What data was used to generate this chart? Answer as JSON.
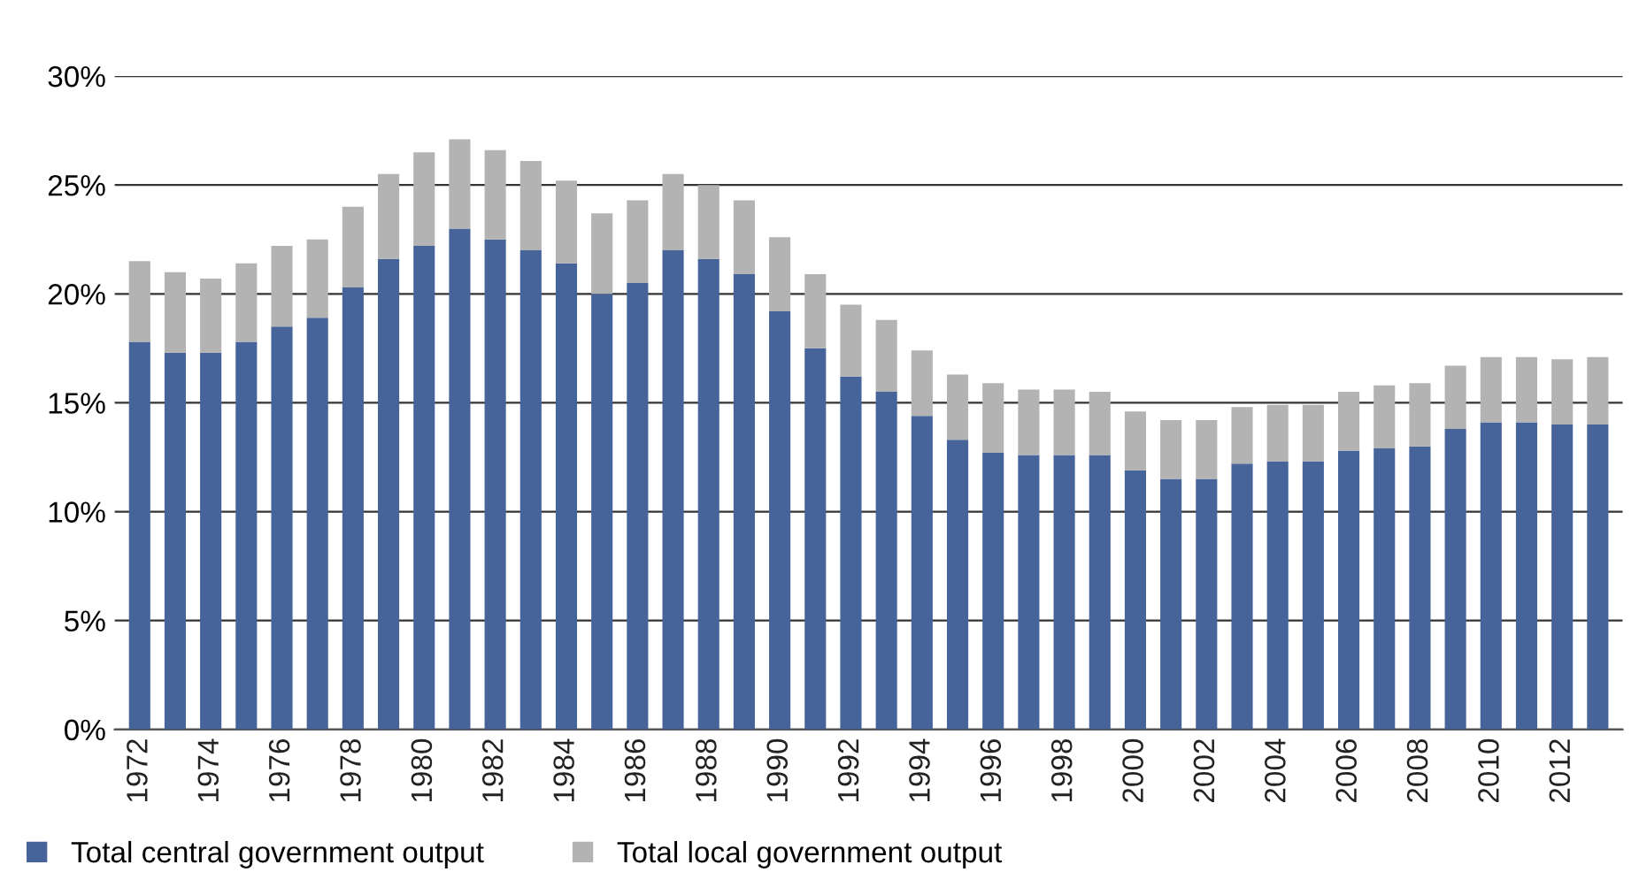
{
  "chart_data": {
    "type": "bar",
    "stacked": true,
    "categories": [
      "1972",
      null,
      "1974",
      null,
      "1976",
      null,
      "1978",
      null,
      "1980",
      null,
      "1982",
      null,
      "1984",
      null,
      "1986",
      null,
      "1988",
      null,
      "1990",
      null,
      "1992",
      null,
      "1994",
      null,
      "1996",
      null,
      "1998",
      null,
      "2000",
      null,
      "2002",
      null,
      "2004",
      null,
      "2006",
      null,
      "2008",
      null,
      "2010",
      null,
      "2012",
      null
    ],
    "series": [
      {
        "name": "Total central government output",
        "color": "#46639a",
        "values": [
          17.8,
          17.3,
          17.3,
          17.8,
          18.5,
          18.9,
          20.3,
          21.6,
          22.2,
          23.0,
          22.5,
          22.0,
          21.4,
          20.0,
          20.5,
          22.0,
          21.6,
          20.9,
          19.2,
          17.5,
          16.2,
          15.5,
          14.4,
          13.3,
          12.7,
          12.6,
          12.6,
          12.6,
          11.9,
          11.5,
          11.5,
          12.2,
          12.3,
          12.3,
          12.8,
          12.9,
          13.0,
          13.8,
          14.1,
          14.1,
          14.0,
          14.0
        ]
      },
      {
        "name": "Total local government output",
        "color": "#b3b3b3",
        "values": [
          3.7,
          3.7,
          3.4,
          3.6,
          3.7,
          3.6,
          3.7,
          3.9,
          4.3,
          4.1,
          4.1,
          4.1,
          3.8,
          3.7,
          3.8,
          3.5,
          3.4,
          3.4,
          3.4,
          3.4,
          3.3,
          3.3,
          3.0,
          3.0,
          3.2,
          3.0,
          3.0,
          2.9,
          2.7,
          2.7,
          2.7,
          2.6,
          2.6,
          2.6,
          2.7,
          2.9,
          2.9,
          2.9,
          3.0,
          3.0,
          3.0,
          3.1
        ]
      }
    ],
    "ylim": [
      0,
      30
    ],
    "yticks": [
      {
        "value": 0,
        "label": "0%"
      },
      {
        "value": 5,
        "label": "5%"
      },
      {
        "value": 10,
        "label": "10%"
      },
      {
        "value": 15,
        "label": "15%"
      },
      {
        "value": 20,
        "label": "20%"
      },
      {
        "value": 25,
        "label": "25%"
      },
      {
        "value": 30,
        "label": "30%"
      }
    ],
    "grid": "y",
    "legend": "bottom left"
  }
}
